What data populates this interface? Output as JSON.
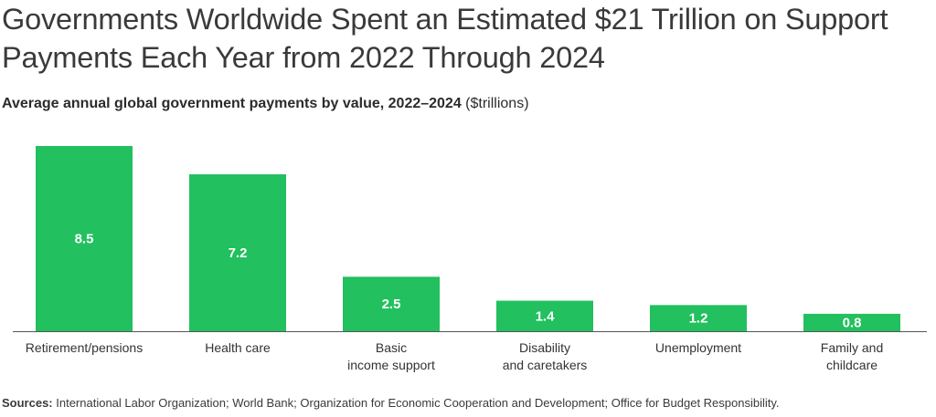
{
  "title": "Governments Worldwide Spent an Estimated $21 Trillion on Support Payments Each Year from 2022 Through 2024",
  "subtitle": {
    "main": "Average annual global government payments by value, 2022–2024",
    "unit": " ($trillions)"
  },
  "sources": {
    "label": "Sources:",
    "text": " International Labor Organization; World Bank; Organization for Economic Cooperation and Development; Office for Budget Responsibility."
  },
  "colors": {
    "bar": "#22c05e",
    "bar_label": "#ffffff",
    "axis": "#555555"
  },
  "chart_data": {
    "type": "bar",
    "title": "Governments Worldwide Spent an Estimated $21 Trillion on Support Payments Each Year from 2022 Through 2024",
    "subtitle": "Average annual global government payments by value, 2022–2024 ($trillions)",
    "categories": [
      [
        "Retirement/pensions"
      ],
      [
        "Health care"
      ],
      [
        "Basic",
        "income support"
      ],
      [
        "Disability",
        "and caretakers"
      ],
      [
        "Unemployment"
      ],
      [
        "Family and",
        "childcare"
      ]
    ],
    "values": [
      8.5,
      7.2,
      2.5,
      1.4,
      1.2,
      0.8
    ],
    "value_labels": [
      "8.5",
      "7.2",
      "2.5",
      "1.4",
      "1.2",
      "0.8"
    ],
    "ylim": [
      0,
      8.5
    ],
    "grid": false,
    "legend": "none"
  }
}
